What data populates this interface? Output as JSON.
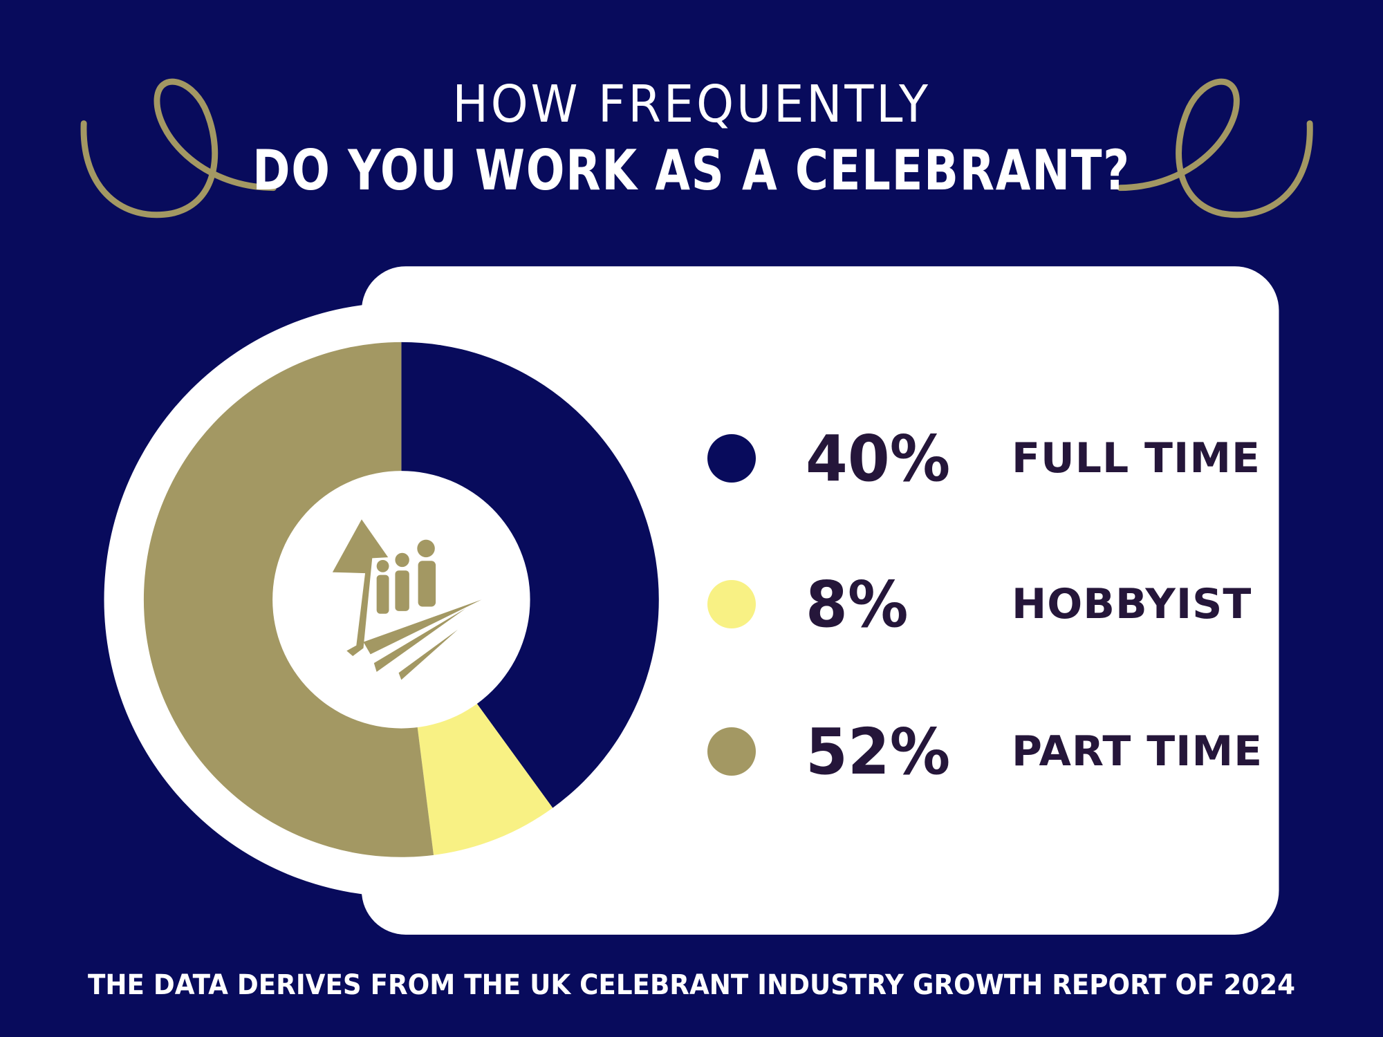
{
  "title": {
    "line1": "HOW FREQUENTLY",
    "line2": "DO YOU WORK AS A CELEBRANT?"
  },
  "chart_data": {
    "type": "pie",
    "title": "HOW FREQUENTLY DO YOU WORK AS A CELEBRANT?",
    "donut": true,
    "start": "top",
    "direction": "clockwise",
    "slices": [
      {
        "label": "FULL TIME",
        "value": 40,
        "display": "40%",
        "color": "#080b5c"
      },
      {
        "label": "HOBBYIST",
        "value": 8,
        "display": "8%",
        "color": "#f8f184"
      },
      {
        "label": "PART TIME",
        "value": 52,
        "display": "52%",
        "color": "#a39863"
      }
    ],
    "legend_placement": "right"
  },
  "colors": {
    "background": "#080b5c",
    "accent": "#a39863",
    "card": "#ffffff",
    "text_dark": "#25163a"
  },
  "footer": "THE DATA DERIVES FROM THE UK CELEBRANT INDUSTRY GROWTH REPORT OF 2024"
}
